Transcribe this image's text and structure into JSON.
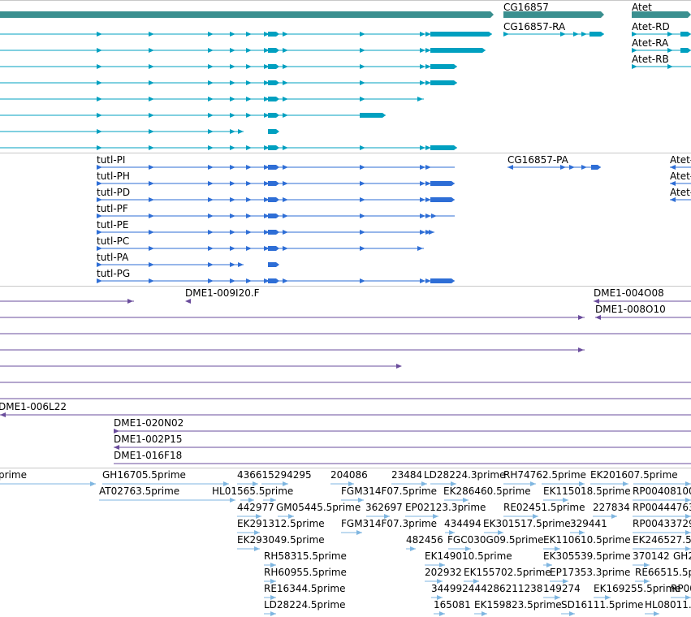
{
  "colors": {
    "gene": "#3a8f8f",
    "transcript": "#00a0c0",
    "protein": "#2e6ed6",
    "clone": "#6a4c9c",
    "est": "#7fb6e0",
    "separator": "#c8c8c8"
  },
  "genes": {
    "left_label": "",
    "cg16857": "CG16857",
    "atet": "Atet"
  },
  "transcripts": {
    "cg16857_ra": "CG16857-RA",
    "atet_rd": "Atet-RD",
    "atet_ra": "Atet-RA",
    "atet_rb": "Atet-RB"
  },
  "proteins": {
    "tutl_pi": "tutl-PI",
    "tutl_ph": "tutl-PH",
    "tutl_pd": "tutl-PD",
    "tutl_pf": "tutl-PF",
    "tutl_pe": "tutl-PE",
    "tutl_pc": "tutl-PC",
    "tutl_pa": "tutl-PA",
    "tutl_pg": "tutl-PG",
    "cg16857_pa": "CG16857-PA",
    "atet_1": "Atet-",
    "atet_2": "Atet-",
    "atet_3": "Atet-"
  },
  "clones": {
    "dme1_009i20": "DME1-009I20.F",
    "dme1_004o08": "DME1-004O08",
    "dme1_008o10": "DME1-008O10",
    "dme1_006l22": "DME1-006L22",
    "dme1_020n02": "DME1-020N02",
    "dme1_002p15": "DME1-002P15",
    "dme1_016f18": "DME1-016F18"
  },
  "ests": {
    "r1": [
      "prime",
      "GH16705.5prime",
      "436615294295",
      "204086",
      "23484",
      "LD28224.3prime",
      "RH74762.5prime",
      "EK201607.5prime"
    ],
    "r2": [
      "AT02763.5prime",
      "HL01565.5prime",
      "FGM314F07.5prime",
      "EK286460.5prime",
      "EK115018.5prime",
      "RP00408100"
    ],
    "r3": [
      "442977",
      "GM05445.5prime",
      "362697",
      "EP02123.3prime",
      "RE02451.5prime",
      "227834",
      "RP00444763"
    ],
    "r4": [
      "EK291312.5prime",
      "FGM314F07.3prime",
      "434494",
      "EK301517.5prime",
      "329441",
      "RP00433729"
    ],
    "r5": [
      "EK293049.5prime",
      "482456",
      "FGC030G09.5prime",
      "EK110610.5prime",
      "EK246527.5"
    ],
    "r6": [
      "RH58315.5prime",
      "EK149010.5prime",
      "EK305539.5prime",
      "370142",
      "GH2"
    ],
    "r7": [
      "RH60955.5prime",
      "202932",
      "EK155702.5prime",
      "EP17353.3prime",
      "RE66515.5p"
    ],
    "r8": [
      "RE16344.5prime",
      "344992444286211238",
      "149274",
      "EK169255.5prime",
      "RP00"
    ],
    "r9": [
      "LD28224.5prime",
      "165081",
      "EK159823.5prime",
      "SD16111.5prime",
      "HL08011."
    ]
  }
}
